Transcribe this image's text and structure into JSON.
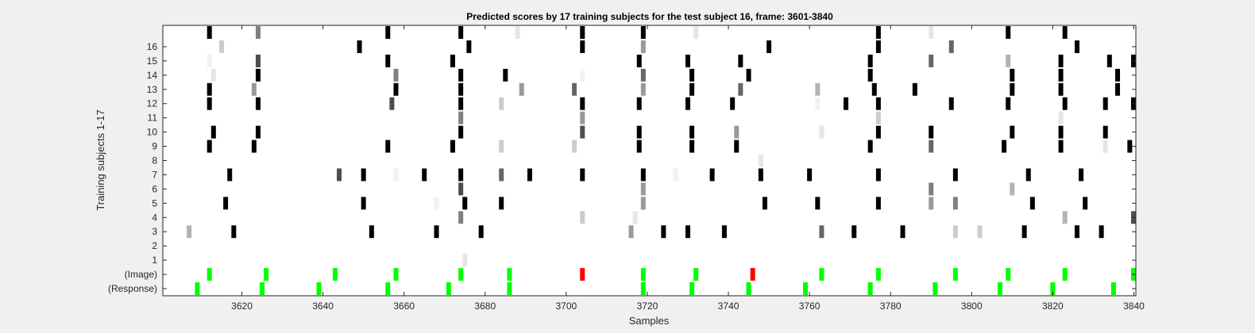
{
  "chart_data": {
    "type": "heatmap",
    "title": "Predicted scores by 17 training subjects for the test subject 16, frame: 3601-3840",
    "xlabel": "Samples",
    "ylabel": "Training subjects 1-17",
    "xlim": [
      3601,
      3840
    ],
    "x_ticks": [
      3620,
      3640,
      3660,
      3680,
      3700,
      3720,
      3740,
      3760,
      3780,
      3800,
      3820,
      3840
    ],
    "grid": false,
    "colormap": "gray (dark = high score)",
    "rows": [
      "(Response)",
      "(Image)",
      "1",
      "2",
      "3",
      "4",
      "5",
      "6",
      "7",
      "8",
      "9",
      "10",
      "11",
      "12",
      "13",
      "14",
      "15",
      "16",
      "17"
    ],
    "y_tick_labels": [
      "(Response)",
      "(Image)",
      "1",
      "2",
      "3",
      "4",
      "5",
      "6",
      "7",
      "8",
      "9",
      "10",
      "11",
      "12",
      "13",
      "14",
      "15",
      "16"
    ],
    "response_markers": {
      "color": "#00ff00",
      "x": [
        3609,
        3625,
        3639,
        3656,
        3671,
        3686,
        3719,
        3731,
        3745,
        3759,
        3775,
        3791,
        3807,
        3820,
        3835
      ]
    },
    "image_markers": [
      {
        "x": 3612,
        "color": "#00ff00"
      },
      {
        "x": 3626,
        "color": "#00ff00"
      },
      {
        "x": 3643,
        "color": "#00ff00"
      },
      {
        "x": 3658,
        "color": "#00ff00"
      },
      {
        "x": 3674,
        "color": "#00ff00"
      },
      {
        "x": 3686,
        "color": "#00ff00"
      },
      {
        "x": 3704,
        "color": "#ff0000"
      },
      {
        "x": 3719,
        "color": "#00ff00"
      },
      {
        "x": 3732,
        "color": "#00ff00"
      },
      {
        "x": 3746,
        "color": "#ff0000"
      },
      {
        "x": 3763,
        "color": "#00ff00"
      },
      {
        "x": 3777,
        "color": "#00ff00"
      },
      {
        "x": 3796,
        "color": "#00ff00"
      },
      {
        "x": 3809,
        "color": "#00ff00"
      },
      {
        "x": 3823,
        "color": "#00ff00"
      },
      {
        "x": 3840,
        "color": "#00ff00"
      }
    ],
    "subjects": {
      "1": [
        [
          3675,
          0.1
        ]
      ],
      "2": [],
      "3": [
        [
          3607,
          0.3
        ],
        [
          3618,
          1
        ],
        [
          3652,
          1
        ],
        [
          3668,
          1
        ],
        [
          3679,
          1
        ],
        [
          3716,
          0.4
        ],
        [
          3724,
          1
        ],
        [
          3730,
          1
        ],
        [
          3739,
          1
        ],
        [
          3763,
          0.6
        ],
        [
          3771,
          1
        ],
        [
          3783,
          1
        ],
        [
          3796,
          0.2
        ],
        [
          3802,
          0.2
        ],
        [
          3813,
          1
        ],
        [
          3826,
          1
        ],
        [
          3832,
          1
        ]
      ],
      "4": [
        [
          3674,
          0.5
        ],
        [
          3704,
          0.2
        ],
        [
          3717,
          0.1
        ],
        [
          3823,
          0.3
        ],
        [
          3840,
          0.7
        ]
      ],
      "5": [
        [
          3616,
          1
        ],
        [
          3650,
          1
        ],
        [
          3668,
          0.05
        ],
        [
          3675,
          1
        ],
        [
          3684,
          1
        ],
        [
          3719,
          0.4
        ],
        [
          3749,
          1
        ],
        [
          3762,
          1
        ],
        [
          3777,
          1
        ],
        [
          3790,
          0.4
        ],
        [
          3796,
          0.5
        ],
        [
          3815,
          1
        ],
        [
          3828,
          1
        ]
      ],
      "6": [
        [
          3674,
          0.7
        ],
        [
          3719,
          0.4
        ],
        [
          3790,
          0.5
        ],
        [
          3810,
          0.3
        ]
      ],
      "7": [
        [
          3617,
          1
        ],
        [
          3644,
          0.7
        ],
        [
          3650,
          1
        ],
        [
          3658,
          0.05
        ],
        [
          3665,
          1
        ],
        [
          3674,
          1
        ],
        [
          3684,
          0.6
        ],
        [
          3691,
          1
        ],
        [
          3704,
          1
        ],
        [
          3719,
          1
        ],
        [
          3727,
          0.05
        ],
        [
          3736,
          1
        ],
        [
          3748,
          1
        ],
        [
          3760,
          1
        ],
        [
          3777,
          1
        ],
        [
          3796,
          1
        ],
        [
          3814,
          1
        ],
        [
          3827,
          1
        ]
      ],
      "8": [
        [
          3748,
          0.1
        ]
      ],
      "9": [
        [
          3612,
          1
        ],
        [
          3623,
          1
        ],
        [
          3656,
          1
        ],
        [
          3672,
          1
        ],
        [
          3684,
          0.2
        ],
        [
          3702,
          0.2
        ],
        [
          3718,
          1
        ],
        [
          3731,
          1
        ],
        [
          3742,
          1
        ],
        [
          3775,
          1
        ],
        [
          3790,
          0.6
        ],
        [
          3808,
          1
        ],
        [
          3822,
          1
        ],
        [
          3833,
          0.1
        ],
        [
          3839,
          1
        ]
      ],
      "10": [
        [
          3613,
          1
        ],
        [
          3624,
          1
        ],
        [
          3674,
          1
        ],
        [
          3704,
          0.7
        ],
        [
          3718,
          1
        ],
        [
          3731,
          1
        ],
        [
          3742,
          0.4
        ],
        [
          3763,
          0.1
        ],
        [
          3777,
          1
        ],
        [
          3790,
          1
        ],
        [
          3810,
          1
        ],
        [
          3822,
          1
        ],
        [
          3833,
          1
        ]
      ],
      "11": [
        [
          3674,
          0.5
        ],
        [
          3704,
          0.4
        ],
        [
          3777,
          0.2
        ],
        [
          3822,
          0.1
        ]
      ],
      "12": [
        [
          3612,
          1
        ],
        [
          3624,
          1
        ],
        [
          3657,
          0.7
        ],
        [
          3674,
          1
        ],
        [
          3684,
          0.2
        ],
        [
          3704,
          1
        ],
        [
          3718,
          1
        ],
        [
          3730,
          1
        ],
        [
          3741,
          1
        ],
        [
          3762,
          0.05
        ],
        [
          3769,
          1
        ],
        [
          3777,
          1
        ],
        [
          3795,
          1
        ],
        [
          3809,
          1
        ],
        [
          3823,
          1
        ],
        [
          3833,
          1
        ],
        [
          3840,
          1
        ]
      ],
      "13": [
        [
          3612,
          1
        ],
        [
          3623,
          0.4
        ],
        [
          3658,
          1
        ],
        [
          3674,
          1
        ],
        [
          3689,
          0.4
        ],
        [
          3702,
          0.6
        ],
        [
          3719,
          0.4
        ],
        [
          3731,
          1
        ],
        [
          3743,
          0.6
        ],
        [
          3762,
          0.3
        ],
        [
          3776,
          1
        ],
        [
          3786,
          1
        ],
        [
          3810,
          1
        ],
        [
          3822,
          1
        ],
        [
          3836,
          1
        ]
      ],
      "14": [
        [
          3613,
          0.1
        ],
        [
          3624,
          1
        ],
        [
          3658,
          0.5
        ],
        [
          3674,
          1
        ],
        [
          3685,
          1
        ],
        [
          3704,
          0.05
        ],
        [
          3719,
          0.6
        ],
        [
          3731,
          1
        ],
        [
          3745,
          1
        ],
        [
          3775,
          1
        ],
        [
          3810,
          1
        ],
        [
          3822,
          1
        ],
        [
          3836,
          1
        ]
      ],
      "15": [
        [
          3612,
          0.05
        ],
        [
          3624,
          0.7
        ],
        [
          3656,
          1
        ],
        [
          3672,
          1
        ],
        [
          3718,
          1
        ],
        [
          3730,
          1
        ],
        [
          3743,
          1
        ],
        [
          3775,
          1
        ],
        [
          3790,
          0.6
        ],
        [
          3809,
          0.3
        ],
        [
          3822,
          1
        ],
        [
          3834,
          1
        ],
        [
          3840,
          1
        ]
      ],
      "16": [
        [
          3615,
          0.2
        ],
        [
          3649,
          1
        ],
        [
          3676,
          1
        ],
        [
          3704,
          1
        ],
        [
          3719,
          0.4
        ],
        [
          3750,
          1
        ],
        [
          3777,
          1
        ],
        [
          3795,
          0.6
        ],
        [
          3826,
          1
        ]
      ],
      "17": [
        [
          3612,
          1
        ],
        [
          3624,
          0.5
        ],
        [
          3656,
          1
        ],
        [
          3674,
          1
        ],
        [
          3688,
          0.1
        ],
        [
          3704,
          1
        ],
        [
          3719,
          1
        ],
        [
          3732,
          0.1
        ],
        [
          3777,
          1
        ],
        [
          3790,
          0.1
        ],
        [
          3809,
          1
        ],
        [
          3823,
          1
        ]
      ]
    }
  }
}
